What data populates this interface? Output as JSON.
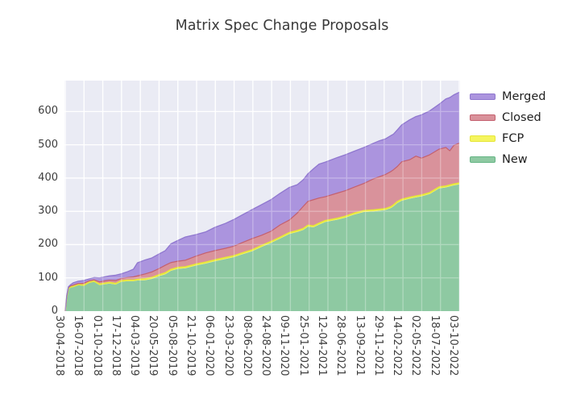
{
  "title": "Matrix Spec Change Proposals",
  "legend": {
    "position": "right",
    "items": [
      {
        "key": "merged",
        "label": "Merged"
      },
      {
        "key": "closed",
        "label": "Closed"
      },
      {
        "key": "fcp",
        "label": "FCP"
      },
      {
        "key": "new",
        "label": "New"
      }
    ]
  },
  "chart_data": {
    "type": "area",
    "stacked": true,
    "title": "Matrix Spec Change Proposals",
    "grid": "on",
    "legend_position": "right",
    "x_ticks": [
      "30-04-2018",
      "16-07-2018",
      "01-10-2018",
      "17-12-2018",
      "04-03-2019",
      "20-05-2019",
      "05-08-2019",
      "21-10-2019",
      "06-01-2020",
      "23-03-2020",
      "08-06-2020",
      "24-08-2020",
      "09-11-2020",
      "25-01-2021",
      "12-04-2021",
      "28-06-2021",
      "13-09-2021",
      "29-11-2021",
      "14-02-2022",
      "02-05-2022",
      "18-07-2022",
      "03-10-2022"
    ],
    "x_range": [
      "30-04-2018",
      "03-10-2022"
    ],
    "y_ticks": [
      0,
      100,
      200,
      300,
      400,
      500,
      600
    ],
    "ylim": [
      0,
      693
    ],
    "stack_order": [
      "new",
      "fcp",
      "closed",
      "merged"
    ],
    "series_labels": {
      "new": "New",
      "fcp": "FCP",
      "closed": "Closed",
      "merged": "Merged"
    },
    "colors": {
      "figure_bg": "#ffffff",
      "plot_bg": "#eaebf4",
      "grid": "#ffffff",
      "tick_text": "#3d3d3d",
      "title_text": "#3a3a3a",
      "series": {
        "new": {
          "fill": "#8ec9a2",
          "edge": "#66b585"
        },
        "fcp": {
          "fill": "#f5f55e",
          "edge": "#e6e63a"
        },
        "closed": {
          "fill": "#d9929b",
          "edge": "#c4606e"
        },
        "merged": {
          "fill": "#ab94de",
          "edge": "#8f77cf"
        }
      }
    },
    "samples": {
      "f": [
        0,
        0.004,
        0.008,
        0.014,
        0.02,
        0.033,
        0.041,
        0.047,
        0.061,
        0.073,
        0.087,
        0.096,
        0.112,
        0.128,
        0.142,
        0.157,
        0.173,
        0.183,
        0.203,
        0.22,
        0.238,
        0.254,
        0.268,
        0.285,
        0.305,
        0.331,
        0.356,
        0.38,
        0.407,
        0.427,
        0.447,
        0.474,
        0.498,
        0.522,
        0.545,
        0.569,
        0.589,
        0.604,
        0.616,
        0.63,
        0.644,
        0.66,
        0.691,
        0.711,
        0.732,
        0.758,
        0.783,
        0.797,
        0.813,
        0.827,
        0.833,
        0.843,
        0.854,
        0.874,
        0.89,
        0.904,
        0.925,
        0.949,
        0.966,
        0.976,
        0.986,
        1.0
      ],
      "new": [
        0,
        45,
        68,
        72,
        73,
        78,
        77,
        76,
        85,
        88,
        78,
        80,
        83,
        80,
        88,
        90,
        90,
        92,
        93,
        97,
        105,
        111,
        121,
        127,
        129,
        137,
        143,
        150,
        157,
        162,
        170,
        180,
        193,
        205,
        218,
        232,
        238,
        244,
        254,
        252,
        260,
        268,
        275,
        281,
        290,
        298,
        300,
        302,
        304,
        310,
        315,
        325,
        332,
        338,
        342,
        345,
        352,
        369,
        372,
        375,
        378,
        381
      ],
      "fcp": [
        0,
        0,
        0,
        1,
        1,
        2,
        2,
        2,
        2,
        2,
        3,
        3,
        3,
        3,
        3,
        3,
        3,
        3,
        4,
        4,
        4,
        4,
        4,
        4,
        4,
        4,
        4,
        4,
        4,
        4,
        4,
        4,
        4,
        4,
        4,
        4,
        4,
        4,
        4,
        4,
        4,
        4,
        4,
        4,
        4,
        4,
        4,
        4,
        4,
        4,
        4,
        4,
        4,
        4,
        4,
        4,
        4,
        4,
        4,
        4,
        4,
        4
      ],
      "closed": [
        0,
        1,
        3,
        3,
        4,
        3,
        4,
        6,
        4,
        4,
        7,
        7,
        7,
        9,
        7,
        8,
        10,
        11,
        15,
        17,
        19,
        23,
        21,
        19,
        20,
        24,
        28,
        28,
        28,
        29,
        31,
        34,
        31,
        31,
        37,
        38,
        53,
        67,
        72,
        79,
        76,
        72,
        76,
        77,
        78,
        82,
        94,
        98,
        103,
        106,
        106,
        106,
        113,
        113,
        120,
        111,
        114,
        114,
        116,
        103,
        116,
        120
      ],
      "merged": [
        0,
        2,
        2,
        4,
        7,
        7,
        8,
        8,
        6,
        7,
        12,
        12,
        13,
        16,
        14,
        17,
        23,
        39,
        42,
        42,
        44,
        44,
        56,
        62,
        70,
        65,
        63,
        70,
        75,
        80,
        83,
        87,
        92,
        95,
        95,
        98,
        85,
        80,
        83,
        93,
        102,
        104,
        107,
        108,
        108,
        108,
        107,
        108,
        107,
        108,
        107,
        110,
        111,
        120,
        119,
        130,
        132,
        135,
        146,
        160,
        152,
        153
      ]
    }
  }
}
